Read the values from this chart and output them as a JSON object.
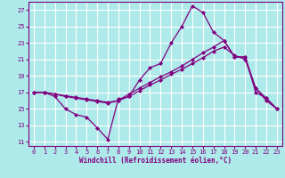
{
  "xlabel": "Windchill (Refroidissement éolien,°C)",
  "bg_color": "#aeeaea",
  "grid_color": "#ffffff",
  "line_color": "#800080",
  "xlim": [
    -0.5,
    23.5
  ],
  "ylim": [
    10.5,
    28.0
  ],
  "xticks": [
    0,
    1,
    2,
    3,
    4,
    5,
    6,
    7,
    8,
    9,
    10,
    11,
    12,
    13,
    14,
    15,
    16,
    17,
    18,
    19,
    20,
    21,
    22,
    23
  ],
  "yticks": [
    11,
    13,
    15,
    17,
    19,
    21,
    23,
    25,
    27
  ],
  "series1_x": [
    0,
    1,
    2,
    3,
    4,
    5,
    6,
    7,
    8,
    9,
    10,
    11,
    12,
    13,
    14,
    15,
    16,
    17,
    18,
    19,
    20,
    21,
    22,
    23
  ],
  "series1_y": [
    17.0,
    17.0,
    16.5,
    15.0,
    14.3,
    14.0,
    12.7,
    11.3,
    16.2,
    16.5,
    18.5,
    20.0,
    20.5,
    23.0,
    25.0,
    27.5,
    26.7,
    24.3,
    23.3,
    21.3,
    21.3,
    17.0,
    16.3,
    15.0
  ],
  "series2_x": [
    0,
    1,
    2,
    3,
    4,
    5,
    6,
    7,
    8,
    9,
    10,
    11,
    12,
    13,
    14,
    15,
    16,
    17,
    18,
    19,
    20,
    21,
    22,
    23
  ],
  "series2_y": [
    17.0,
    17.0,
    16.8,
    16.5,
    16.3,
    16.1,
    15.9,
    15.7,
    16.0,
    16.8,
    17.5,
    18.2,
    18.9,
    19.5,
    20.2,
    21.0,
    21.8,
    22.5,
    23.3,
    21.3,
    21.3,
    17.5,
    16.3,
    15.0
  ],
  "series3_x": [
    0,
    1,
    2,
    3,
    4,
    5,
    6,
    7,
    8,
    9,
    10,
    11,
    12,
    13,
    14,
    15,
    16,
    17,
    18,
    19,
    20,
    21,
    22,
    23
  ],
  "series3_y": [
    17.0,
    17.0,
    16.8,
    16.6,
    16.4,
    16.2,
    16.0,
    15.8,
    16.0,
    16.5,
    17.2,
    17.9,
    18.5,
    19.2,
    19.8,
    20.5,
    21.2,
    22.0,
    22.5,
    21.5,
    21.0,
    17.5,
    16.0,
    15.0
  ]
}
